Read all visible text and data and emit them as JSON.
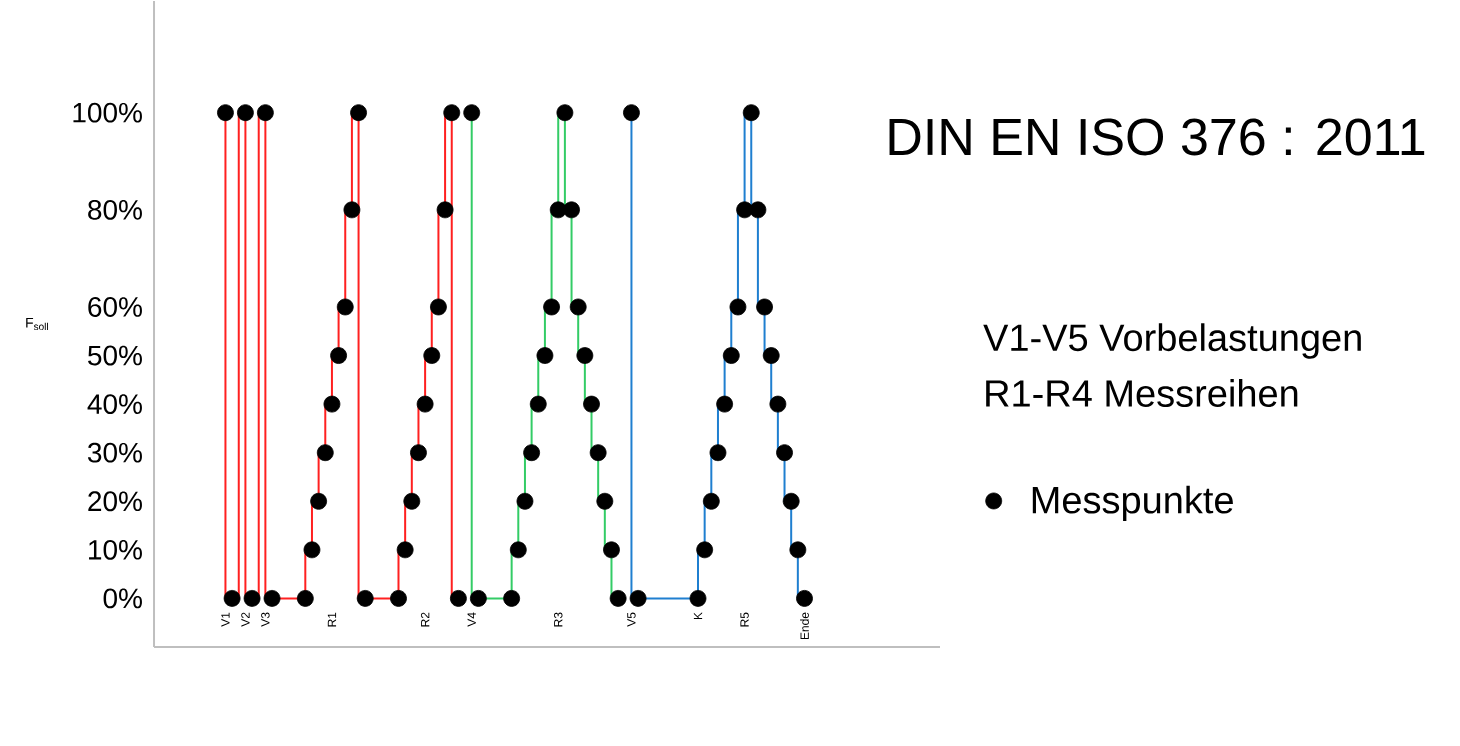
{
  "chart_data": {
    "type": "step",
    "title": "DIN EN ISO 376 : 2011",
    "ylabel": "F$_{soll}$",
    "annotations": [
      "V1-V5 Vorbelastungen",
      "R1-R4 Messreihen"
    ],
    "categories": [
      "V1",
      null,
      null,
      "V2",
      null,
      null,
      "V3",
      null,
      null,
      null,
      null,
      null,
      null,
      null,
      null,
      null,
      "R1",
      null,
      null,
      null,
      null,
      null,
      null,
      null,
      null,
      null,
      null,
      null,
      null,
      null,
      "R2",
      null,
      null,
      null,
      null,
      null,
      null,
      "V4",
      null,
      null,
      null,
      null,
      null,
      null,
      null,
      null,
      null,
      null,
      null,
      null,
      "R3",
      null,
      null,
      null,
      null,
      null,
      null,
      null,
      null,
      null,
      null,
      "V5",
      null,
      null,
      null,
      null,
      null,
      null,
      null,
      null,
      null,
      "K",
      null,
      null,
      null,
      null,
      null,
      null,
      "R5",
      null,
      null,
      null,
      null,
      null,
      null,
      null,
      null,
      "Ende"
    ],
    "ylim": [
      -10,
      123
    ],
    "yticks": [
      {
        "value": 0,
        "label": "0%"
      },
      {
        "value": 10,
        "label": "10%"
      },
      {
        "value": 20,
        "label": "20%"
      },
      {
        "value": 30,
        "label": "30%"
      },
      {
        "value": 40,
        "label": "40%"
      },
      {
        "value": 50,
        "label": "50%"
      },
      {
        "value": 60,
        "label": "60%"
      },
      {
        "value": 80,
        "label": "80%"
      },
      {
        "value": 100,
        "label": "100%"
      }
    ],
    "legend": "right",
    "series": [
      {
        "color": "#ff2020",
        "values": [
          100,
          0,
          0,
          100,
          0,
          0,
          100,
          0,
          0,
          0,
          0,
          0,
          0,
          10,
          20,
          30,
          40,
          50,
          60,
          80,
          100,
          0,
          0,
          0,
          0,
          0,
          0,
          10,
          20,
          30,
          40,
          50,
          60,
          80,
          100,
          0,
          null,
          null,
          null,
          null,
          null,
          null,
          null,
          null,
          null,
          null,
          null,
          null,
          null,
          null,
          null,
          null,
          null,
          null,
          null,
          null,
          null,
          null,
          null,
          null,
          null,
          null,
          null,
          null,
          null,
          null,
          null,
          null,
          null,
          null,
          null,
          null,
          null,
          null,
          null,
          null,
          null,
          null,
          null,
          null,
          null,
          null,
          null,
          null,
          null,
          null,
          null,
          null
        ]
      },
      {
        "color": "#33cc66",
        "values": [
          null,
          null,
          null,
          null,
          null,
          null,
          null,
          null,
          null,
          null,
          null,
          null,
          null,
          null,
          null,
          null,
          null,
          null,
          null,
          null,
          null,
          null,
          null,
          null,
          null,
          null,
          null,
          null,
          null,
          null,
          null,
          null,
          null,
          null,
          null,
          null,
          null,
          100,
          0,
          0,
          0,
          0,
          0,
          0,
          10,
          20,
          30,
          40,
          50,
          60,
          80,
          100,
          80,
          60,
          50,
          40,
          30,
          20,
          10,
          0,
          null,
          null,
          null,
          null,
          null,
          null,
          null,
          null,
          null,
          null,
          null,
          null,
          null,
          null,
          null,
          null,
          null,
          null,
          null,
          null,
          null,
          null,
          null,
          null,
          null,
          null,
          null,
          null
        ]
      },
      {
        "color": "#1f7fd0",
        "values": [
          null,
          null,
          null,
          null,
          null,
          null,
          null,
          null,
          null,
          null,
          null,
          null,
          null,
          null,
          null,
          null,
          null,
          null,
          null,
          null,
          null,
          null,
          null,
          null,
          null,
          null,
          null,
          null,
          null,
          null,
          null,
          null,
          null,
          null,
          null,
          null,
          null,
          null,
          null,
          null,
          null,
          null,
          null,
          null,
          null,
          null,
          null,
          null,
          null,
          null,
          null,
          null,
          null,
          null,
          null,
          null,
          null,
          null,
          null,
          null,
          null,
          100,
          0,
          0,
          0,
          0,
          0,
          0,
          0,
          0,
          0,
          0,
          10,
          20,
          30,
          40,
          50,
          60,
          80,
          100,
          80,
          60,
          50,
          40,
          30,
          20,
          10,
          0
        ]
      },
      {
        "type": "scatter",
        "name": "Messpunkte",
        "color": "#000000",
        "marker": "circle",
        "values": [
          100,
          0,
          null,
          100,
          0,
          null,
          100,
          0,
          null,
          null,
          null,
          null,
          0,
          10,
          20,
          30,
          40,
          50,
          60,
          80,
          100,
          0,
          null,
          null,
          null,
          null,
          0,
          10,
          20,
          30,
          40,
          50,
          60,
          80,
          100,
          0,
          null,
          100,
          0,
          null,
          null,
          null,
          null,
          0,
          10,
          20,
          30,
          40,
          50,
          60,
          80,
          100,
          80,
          60,
          50,
          40,
          30,
          20,
          10,
          0,
          null,
          100,
          0,
          null,
          null,
          null,
          null,
          null,
          null,
          null,
          null,
          0,
          10,
          20,
          30,
          40,
          50,
          60,
          80,
          100,
          80,
          60,
          50,
          40,
          30,
          20,
          10,
          0
        ]
      }
    ]
  }
}
